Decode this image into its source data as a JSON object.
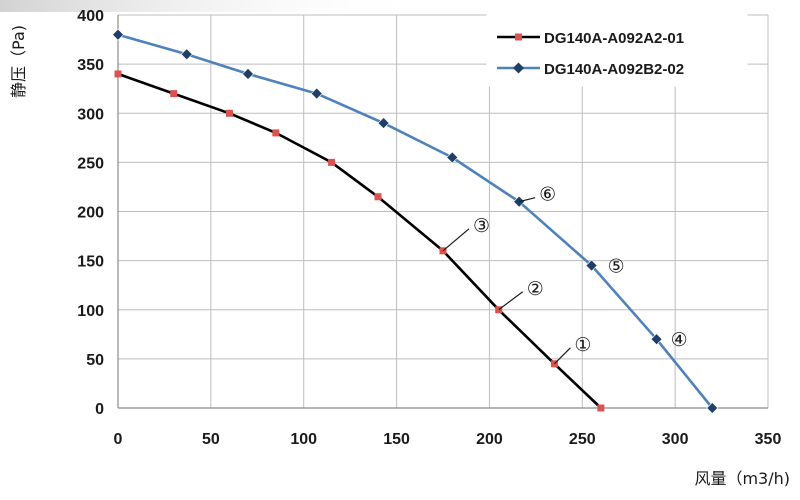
{
  "chart_data": {
    "type": "line",
    "title": "",
    "xlabel": "风量（m3/h)",
    "ylabel": "静压（Pa)",
    "xlim": [
      0,
      350
    ],
    "ylim": [
      0,
      400
    ],
    "xticks": [
      0,
      50,
      100,
      150,
      200,
      250,
      300,
      350
    ],
    "yticks": [
      0,
      50,
      100,
      150,
      200,
      250,
      300,
      350,
      400
    ],
    "grid": true,
    "legend_position": "top-right",
    "series": [
      {
        "name": "DG140A-A092A2-01",
        "color": "#000000",
        "marker_color": "#d9534f",
        "marker": "square",
        "points": [
          [
            0,
            340
          ],
          [
            30,
            320
          ],
          [
            60,
            300
          ],
          [
            85,
            280
          ],
          [
            115,
            250
          ],
          [
            140,
            215
          ],
          [
            175,
            160
          ],
          [
            205,
            100
          ],
          [
            235,
            45
          ],
          [
            260,
            0
          ]
        ]
      },
      {
        "name": "DG140A-A092B2-02",
        "color": "#4f81bd",
        "marker_color": "#1f3f66",
        "marker": "diamond",
        "points": [
          [
            0,
            380
          ],
          [
            37,
            360
          ],
          [
            70,
            340
          ],
          [
            107,
            320
          ],
          [
            143,
            290
          ],
          [
            180,
            255
          ],
          [
            216,
            210
          ],
          [
            255,
            145
          ],
          [
            290,
            70
          ],
          [
            320,
            0
          ]
        ]
      }
    ],
    "annotations": [
      {
        "text": "①",
        "x": 235,
        "y": 45
      },
      {
        "text": "②",
        "x": 205,
        "y": 100
      },
      {
        "text": "③",
        "x": 175,
        "y": 160
      },
      {
        "text": "⑥",
        "x": 216,
        "y": 210
      },
      {
        "text": "⑤",
        "x": 255,
        "y": 145
      },
      {
        "text": "④",
        "x": 290,
        "y": 70
      }
    ]
  }
}
